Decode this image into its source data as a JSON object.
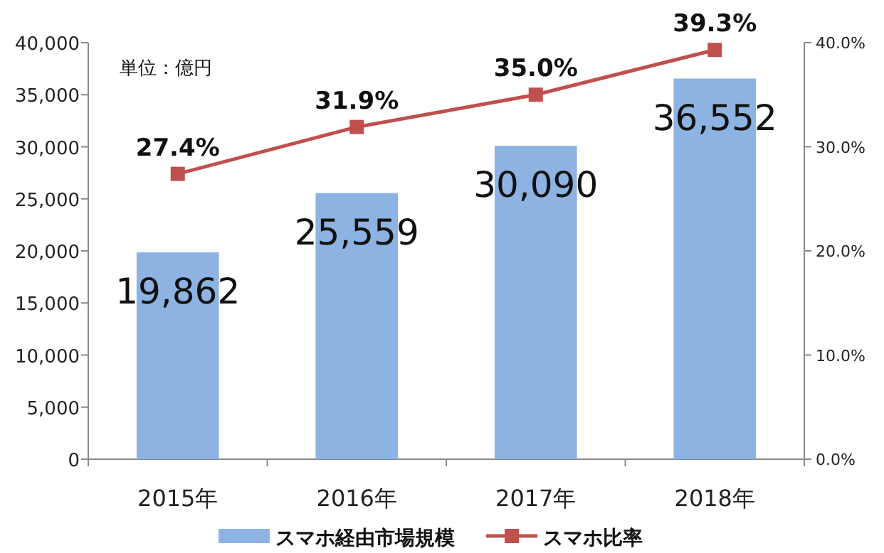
{
  "chart_data": {
    "type": "bar",
    "categories": [
      "2015年",
      "2016年",
      "2017年",
      "2018年"
    ],
    "series": [
      {
        "name": "スマホ経由市場規模",
        "color": "#8db3e2",
        "values": [
          19862,
          25559,
          30090,
          36552
        ],
        "value_labels": [
          "19,862",
          "25,559",
          "30,090",
          "36,552"
        ]
      },
      {
        "name": "スマホ比率",
        "type": "line",
        "axis": "y2",
        "color": "#c0504d",
        "marker": "square",
        "values": [
          27.4,
          31.9,
          35.0,
          39.3
        ],
        "value_labels": [
          "27.4%",
          "31.9%",
          "35.0%",
          "39.3%"
        ]
      }
    ],
    "ylim": [
      0,
      40000
    ],
    "yticks": [
      0,
      {
        "value": 5000,
        "label": "5,000"
      },
      {
        "value": 10000,
        "label": "10,000"
      },
      {
        "value": 15000,
        "label": "15,000"
      },
      {
        "value": 20000,
        "label": "20,000"
      },
      {
        "value": 25000,
        "label": "25,000"
      },
      {
        "value": 30000,
        "label": "30,000"
      },
      {
        "value": 35000,
        "label": "35,000"
      },
      {
        "value": 40000,
        "label": "40,000"
      }
    ],
    "y2lim": [
      0,
      40
    ],
    "y2ticks": [
      {
        "value": 0,
        "label": "0.0%"
      },
      {
        "value": 10,
        "label": "10.0%"
      },
      {
        "value": 20,
        "label": "20.0%"
      },
      {
        "value": 30,
        "label": "30.0%"
      },
      {
        "value": 40,
        "label": "40.0%"
      }
    ],
    "annotations": [
      "単位：億円"
    ],
    "legend": "bottom"
  }
}
